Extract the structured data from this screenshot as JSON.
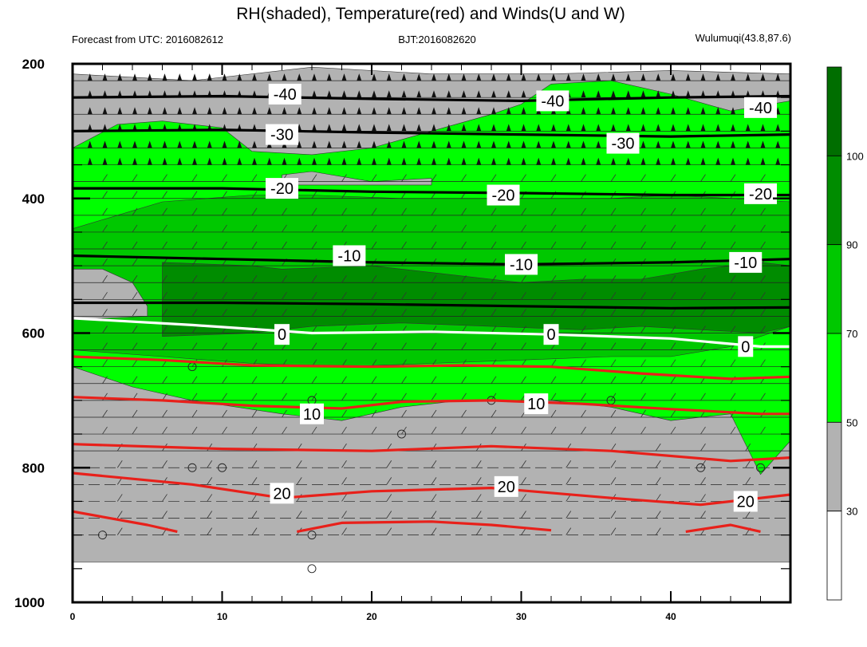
{
  "header": {
    "title": "RH(shaded), Temperature(red) and Winds(U and W)",
    "forecast": "Forecast from UTC: 2016082612",
    "bjt": "BJT:2016082620",
    "station": "Wulumuqi(43.8,87.6)"
  },
  "colors": {
    "rh_lt30": "#ffffff",
    "rh_30_50": "#b2b2b2",
    "rh_50_70": "#00ff00",
    "rh_70_90": "#00c800",
    "rh_90_100": "#008c00",
    "rh_gt100": "#006e00",
    "temp_warm": "#e8201a",
    "temp_zero": "#ffffff",
    "temp_cold": "#000000"
  },
  "chart_data": {
    "type": "contour-cross-section",
    "xlim": [
      0,
      48
    ],
    "ylim": [
      200,
      1000
    ],
    "y_inverted": true,
    "x_ticks": [
      0,
      10,
      20,
      30,
      40
    ],
    "y_ticks": [
      200,
      400,
      600,
      800,
      1000
    ],
    "colorbar": {
      "ticks": [
        "30",
        "50",
        "70",
        "90",
        "100"
      ],
      "colors": [
        "#ffffff",
        "#b2b2b2",
        "#00ff00",
        "#00c800",
        "#008c00",
        "#006e00"
      ]
    },
    "rh_layers": [
      {
        "color": "#b2b2b2",
        "top": [
          [
            0,
            215
          ],
          [
            8,
            225
          ],
          [
            16,
            205
          ],
          [
            24,
            215
          ],
          [
            32,
            215
          ],
          [
            40,
            210
          ],
          [
            48,
            215
          ]
        ],
        "bottom": [
          [
            0,
            940
          ],
          [
            48,
            940
          ]
        ]
      },
      {
        "color": "#00ff00",
        "top": [
          [
            0,
            325
          ],
          [
            3,
            290
          ],
          [
            6,
            285
          ],
          [
            10,
            295
          ],
          [
            12,
            330
          ],
          [
            16,
            335
          ],
          [
            20,
            325
          ],
          [
            24,
            300
          ],
          [
            28,
            275
          ],
          [
            30,
            260
          ],
          [
            32,
            230
          ],
          [
            36,
            225
          ],
          [
            40,
            245
          ],
          [
            44,
            270
          ],
          [
            48,
            255
          ]
        ],
        "bottom": [
          [
            0,
            650
          ],
          [
            4,
            680
          ],
          [
            8,
            700
          ],
          [
            14,
            720
          ],
          [
            18,
            730
          ],
          [
            22,
            710
          ],
          [
            26,
            700
          ],
          [
            32,
            700
          ],
          [
            36,
            710
          ],
          [
            40,
            730
          ],
          [
            44,
            720
          ],
          [
            46,
            810
          ],
          [
            48,
            760
          ]
        ]
      },
      {
        "color": "#00c800",
        "top": [
          [
            0,
            445
          ],
          [
            6,
            405
          ],
          [
            12,
            395
          ],
          [
            16,
            395
          ],
          [
            22,
            400
          ],
          [
            28,
            400
          ],
          [
            36,
            400
          ],
          [
            40,
            395
          ],
          [
            48,
            405
          ]
        ],
        "bottom": [
          [
            0,
            625
          ],
          [
            6,
            635
          ],
          [
            12,
            645
          ],
          [
            18,
            650
          ],
          [
            24,
            645
          ],
          [
            30,
            640
          ],
          [
            36,
            635
          ],
          [
            40,
            635
          ],
          [
            44,
            620
          ],
          [
            48,
            590
          ]
        ]
      },
      {
        "color": "#008c00",
        "top": [
          [
            6,
            495
          ],
          [
            12,
            500
          ],
          [
            14,
            505
          ],
          [
            20,
            500
          ],
          [
            26,
            515
          ],
          [
            30,
            525
          ],
          [
            34,
            520
          ],
          [
            38,
            520
          ],
          [
            42,
            505
          ],
          [
            46,
            495
          ],
          [
            48,
            500
          ]
        ],
        "bottom": [
          [
            6,
            605
          ],
          [
            12,
            600
          ],
          [
            16,
            590
          ],
          [
            22,
            585
          ],
          [
            28,
            590
          ],
          [
            34,
            595
          ],
          [
            38,
            590
          ],
          [
            42,
            595
          ],
          [
            46,
            600
          ],
          [
            48,
            590
          ]
        ]
      },
      {
        "color": "#b2b2b2",
        "top": [
          [
            0,
            505
          ],
          [
            2,
            505
          ],
          [
            4,
            525
          ],
          [
            5,
            560
          ]
        ],
        "bottom": [
          [
            0,
            580
          ],
          [
            5,
            575
          ]
        ]
      },
      {
        "color": "#b2b2b2",
        "top": [
          [
            14,
            365
          ],
          [
            16,
            360
          ],
          [
            20,
            375
          ],
          [
            24,
            370
          ],
          [
            24,
            375
          ]
        ],
        "bottom": [
          [
            14,
            380
          ],
          [
            24,
            380
          ]
        ]
      }
    ],
    "temperature_contours": [
      {
        "label": "-40",
        "color": "#000000",
        "points": [
          [
            0,
            250
          ],
          [
            10,
            248
          ],
          [
            20,
            252
          ],
          [
            30,
            255
          ],
          [
            40,
            250
          ],
          [
            48,
            248
          ]
        ]
      },
      {
        "label": "-30",
        "color": "#000000",
        "points": [
          [
            0,
            300
          ],
          [
            10,
            298
          ],
          [
            20,
            302
          ],
          [
            30,
            305
          ],
          [
            40,
            308
          ],
          [
            48,
            305
          ]
        ]
      },
      {
        "label": "-20",
        "color": "#000000",
        "points": [
          [
            0,
            385
          ],
          [
            10,
            385
          ],
          [
            20,
            390
          ],
          [
            30,
            392
          ],
          [
            40,
            395
          ],
          [
            48,
            395
          ]
        ]
      },
      {
        "label": "-10",
        "color": "#000000",
        "points": [
          [
            0,
            485
          ],
          [
            10,
            490
          ],
          [
            20,
            495
          ],
          [
            30,
            498
          ],
          [
            40,
            495
          ],
          [
            48,
            490
          ]
        ]
      },
      {
        "label": "",
        "color": "#000000",
        "points": [
          [
            0,
            555
          ],
          [
            10,
            555
          ],
          [
            20,
            557
          ],
          [
            30,
            560
          ],
          [
            40,
            563
          ],
          [
            48,
            562
          ]
        ]
      },
      {
        "label": "0",
        "color": "#ffffff",
        "points": [
          [
            0,
            578
          ],
          [
            8,
            588
          ],
          [
            16,
            600
          ],
          [
            24,
            598
          ],
          [
            32,
            602
          ],
          [
            40,
            608
          ],
          [
            46,
            620
          ],
          [
            48,
            620
          ]
        ]
      },
      {
        "label": "",
        "color": "#e8201a",
        "points": [
          [
            0,
            635
          ],
          [
            6,
            640
          ],
          [
            12,
            648
          ],
          [
            20,
            650
          ],
          [
            26,
            648
          ],
          [
            32,
            650
          ],
          [
            38,
            660
          ],
          [
            44,
            668
          ],
          [
            48,
            665
          ]
        ]
      },
      {
        "label": "10",
        "color": "#e8201a",
        "points": [
          [
            0,
            695
          ],
          [
            6,
            700
          ],
          [
            12,
            708
          ],
          [
            18,
            712
          ],
          [
            22,
            702
          ],
          [
            28,
            700
          ],
          [
            34,
            705
          ],
          [
            40,
            713
          ],
          [
            46,
            720
          ],
          [
            48,
            720
          ]
        ]
      },
      {
        "label": "",
        "color": "#e8201a",
        "points": [
          [
            0,
            765
          ],
          [
            10,
            772
          ],
          [
            20,
            775
          ],
          [
            28,
            768
          ],
          [
            36,
            775
          ],
          [
            44,
            790
          ],
          [
            48,
            785
          ]
        ]
      },
      {
        "label": "20",
        "color": "#e8201a",
        "points": [
          [
            0,
            808
          ],
          [
            8,
            825
          ],
          [
            14,
            845
          ],
          [
            20,
            835
          ],
          [
            28,
            830
          ],
          [
            36,
            845
          ],
          [
            42,
            855
          ],
          [
            48,
            840
          ]
        ]
      },
      {
        "label": "",
        "color": "#e8201a",
        "points": [
          [
            0,
            865
          ],
          [
            5,
            885
          ],
          [
            7,
            895
          ]
        ]
      },
      {
        "label": "",
        "color": "#e8201a",
        "points": [
          [
            15,
            895
          ],
          [
            18,
            882
          ],
          [
            24,
            880
          ],
          [
            28,
            885
          ],
          [
            32,
            893
          ]
        ]
      },
      {
        "label": "",
        "color": "#e8201a",
        "points": [
          [
            41,
            895
          ],
          [
            44,
            885
          ],
          [
            46,
            895
          ]
        ]
      }
    ],
    "contour_labels": [
      {
        "text": "-40",
        "x": 14.2,
        "y": 245
      },
      {
        "text": "-40",
        "x": 32.1,
        "y": 255
      },
      {
        "text": "-40",
        "x": 46.0,
        "y": 265
      },
      {
        "text": "-30",
        "x": 14.0,
        "y": 305
      },
      {
        "text": "-30",
        "x": 36.8,
        "y": 318
      },
      {
        "text": "-20",
        "x": 14.0,
        "y": 385
      },
      {
        "text": "-20",
        "x": 28.8,
        "y": 395
      },
      {
        "text": "-20",
        "x": 46.0,
        "y": 393
      },
      {
        "text": "-10",
        "x": 18.5,
        "y": 485
      },
      {
        "text": "-10",
        "x": 30.0,
        "y": 498
      },
      {
        "text": "-10",
        "x": 45.0,
        "y": 495
      },
      {
        "text": "0",
        "x": 14.0,
        "y": 602
      },
      {
        "text": "0",
        "x": 32.0,
        "y": 602
      },
      {
        "text": "0",
        "x": 45.0,
        "y": 620
      },
      {
        "text": "10",
        "x": 16.0,
        "y": 720
      },
      {
        "text": "10",
        "x": 31.0,
        "y": 705
      },
      {
        "text": "20",
        "x": 14.0,
        "y": 838
      },
      {
        "text": "20",
        "x": 29.0,
        "y": 828
      },
      {
        "text": "20",
        "x": 45.0,
        "y": 850
      }
    ],
    "wind_levels": [
      225,
      250,
      275,
      300,
      325,
      350,
      375,
      400,
      425,
      450,
      475,
      500,
      525,
      550,
      575,
      600,
      625,
      650,
      675,
      700,
      725,
      750,
      775,
      800,
      825,
      850,
      875,
      900
    ],
    "calm_circles": [
      [
        8,
        650
      ],
      [
        8,
        800
      ],
      [
        10,
        800
      ],
      [
        16,
        700
      ],
      [
        22,
        750
      ],
      [
        28,
        700
      ],
      [
        36,
        700
      ],
      [
        42,
        800
      ],
      [
        46,
        800
      ],
      [
        2,
        900
      ],
      [
        16,
        900
      ],
      [
        16,
        950
      ]
    ]
  }
}
